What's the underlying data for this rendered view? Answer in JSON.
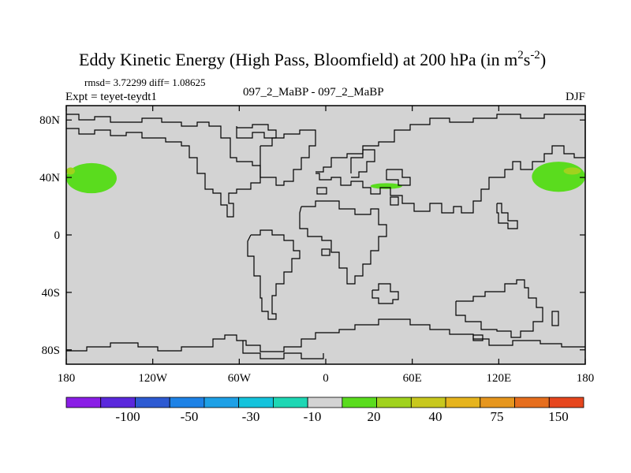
{
  "chart_data": {
    "type": "heatmap",
    "title": "Eddy Kinetic Energy (High Pass, Bloomfield) at 200 hPa (in m",
    "title_sup1": "2",
    "title_mid": "s",
    "title_sup2": "-2",
    "title_end": ")",
    "stats": "rmsd= 3.72299 diff= 1.08625",
    "experiment": "Expt = teyet-teydt1",
    "subtitle": "097_2_MaBP - 097_2_MaBP",
    "season": "DJF",
    "x_ticks": [
      "180",
      "120W",
      "60W",
      "0",
      "60E",
      "120E",
      "180"
    ],
    "x_tick_values": [
      -180,
      -120,
      -60,
      0,
      60,
      120,
      180
    ],
    "y_ticks": [
      "80N",
      "40N",
      "0",
      "40S",
      "80S"
    ],
    "y_tick_values": [
      80,
      40,
      0,
      -40,
      -80
    ],
    "xlim": [
      -180,
      180
    ],
    "ylim": [
      -90,
      90
    ],
    "background_color": "#d3d3d3",
    "colorbar": {
      "colors": [
        "#8a1ee6",
        "#5a28dc",
        "#2d5ad2",
        "#1e82e6",
        "#1ea0e6",
        "#14c3dc",
        "#1ed7b4",
        "#d3d3d3",
        "#5adc1e",
        "#a0d21e",
        "#c8c81e",
        "#e6b41e",
        "#e6961e",
        "#e66e1e",
        "#e6461e"
      ],
      "labels": [
        "-100",
        "-50",
        "-30",
        "-10",
        "20",
        "40",
        "75",
        "150"
      ]
    },
    "regions": [
      {
        "name": "north-pacific-east-jet",
        "lon": [
          -180,
          -145
        ],
        "lat": [
          29,
          50
        ],
        "level": "20",
        "color": "#5adc1e"
      },
      {
        "name": "north-pacific-east-core",
        "lon": [
          -180,
          -174
        ],
        "lat": [
          42,
          47
        ],
        "level": "40",
        "color": "#a0d21e"
      },
      {
        "name": "north-pacific-west-jet",
        "lon": [
          143,
          180
        ],
        "lat": [
          30,
          51
        ],
        "level": "20",
        "color": "#5adc1e"
      },
      {
        "name": "north-pacific-west-core",
        "lon": [
          165,
          177
        ],
        "lat": [
          42,
          47
        ],
        "level": "40",
        "color": "#a0d21e"
      },
      {
        "name": "mediterranean-patch",
        "lon": [
          31,
          53
        ],
        "lat": [
          32,
          36
        ],
        "level": "20",
        "color": "#5adc1e"
      }
    ]
  }
}
